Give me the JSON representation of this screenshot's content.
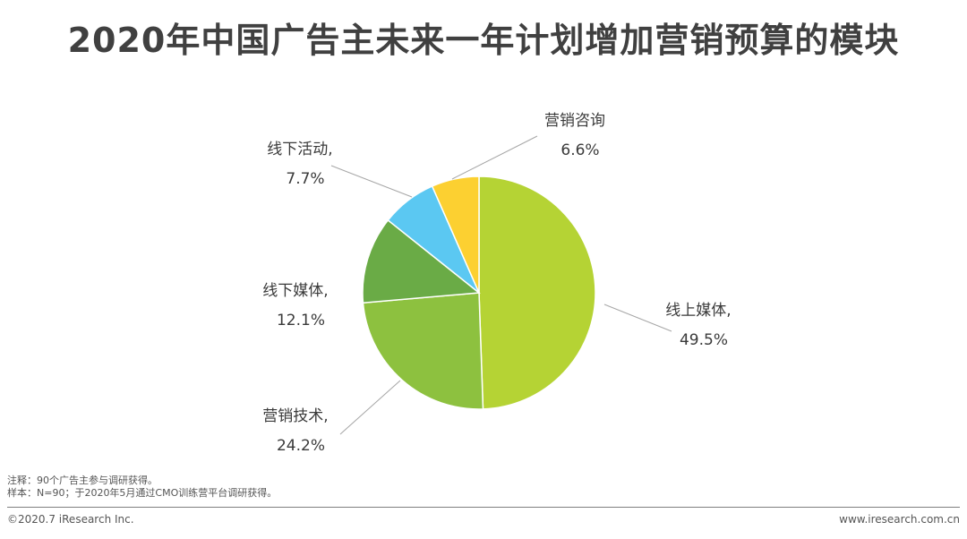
{
  "title": "2020年中国广告主未来一年计划增加营销预算的模块",
  "chart_data": {
    "type": "pie",
    "title": "2020年中国广告主未来一年计划增加营销预算的模块",
    "slices": [
      {
        "label": "线上媒体,",
        "value": 49.5,
        "display": "49.5%",
        "color": "#b5d334"
      },
      {
        "label": "营销技术,",
        "value": 24.2,
        "display": "24.2%",
        "color": "#8dc13f"
      },
      {
        "label": "线下媒体,",
        "value": 12.1,
        "display": "12.1%",
        "color": "#6aab46"
      },
      {
        "label": "线下活动,",
        "value": 7.7,
        "display": "7.7%",
        "color": "#5bc8f2"
      },
      {
        "label": "营销咨询",
        "value": 6.6,
        "display": "6.6%",
        "color": "#fcd031"
      }
    ],
    "start": "12 o'clock",
    "direction": "clockwise"
  },
  "notes": {
    "line1": "注释：90个广告主参与调研获得。",
    "line2": "样本：N=90；于2020年5月通过CMO训练营平台调研获得。"
  },
  "footer": {
    "copyright": "©2020.7 iResearch Inc.",
    "website": "www.iresearch.com.cn"
  }
}
